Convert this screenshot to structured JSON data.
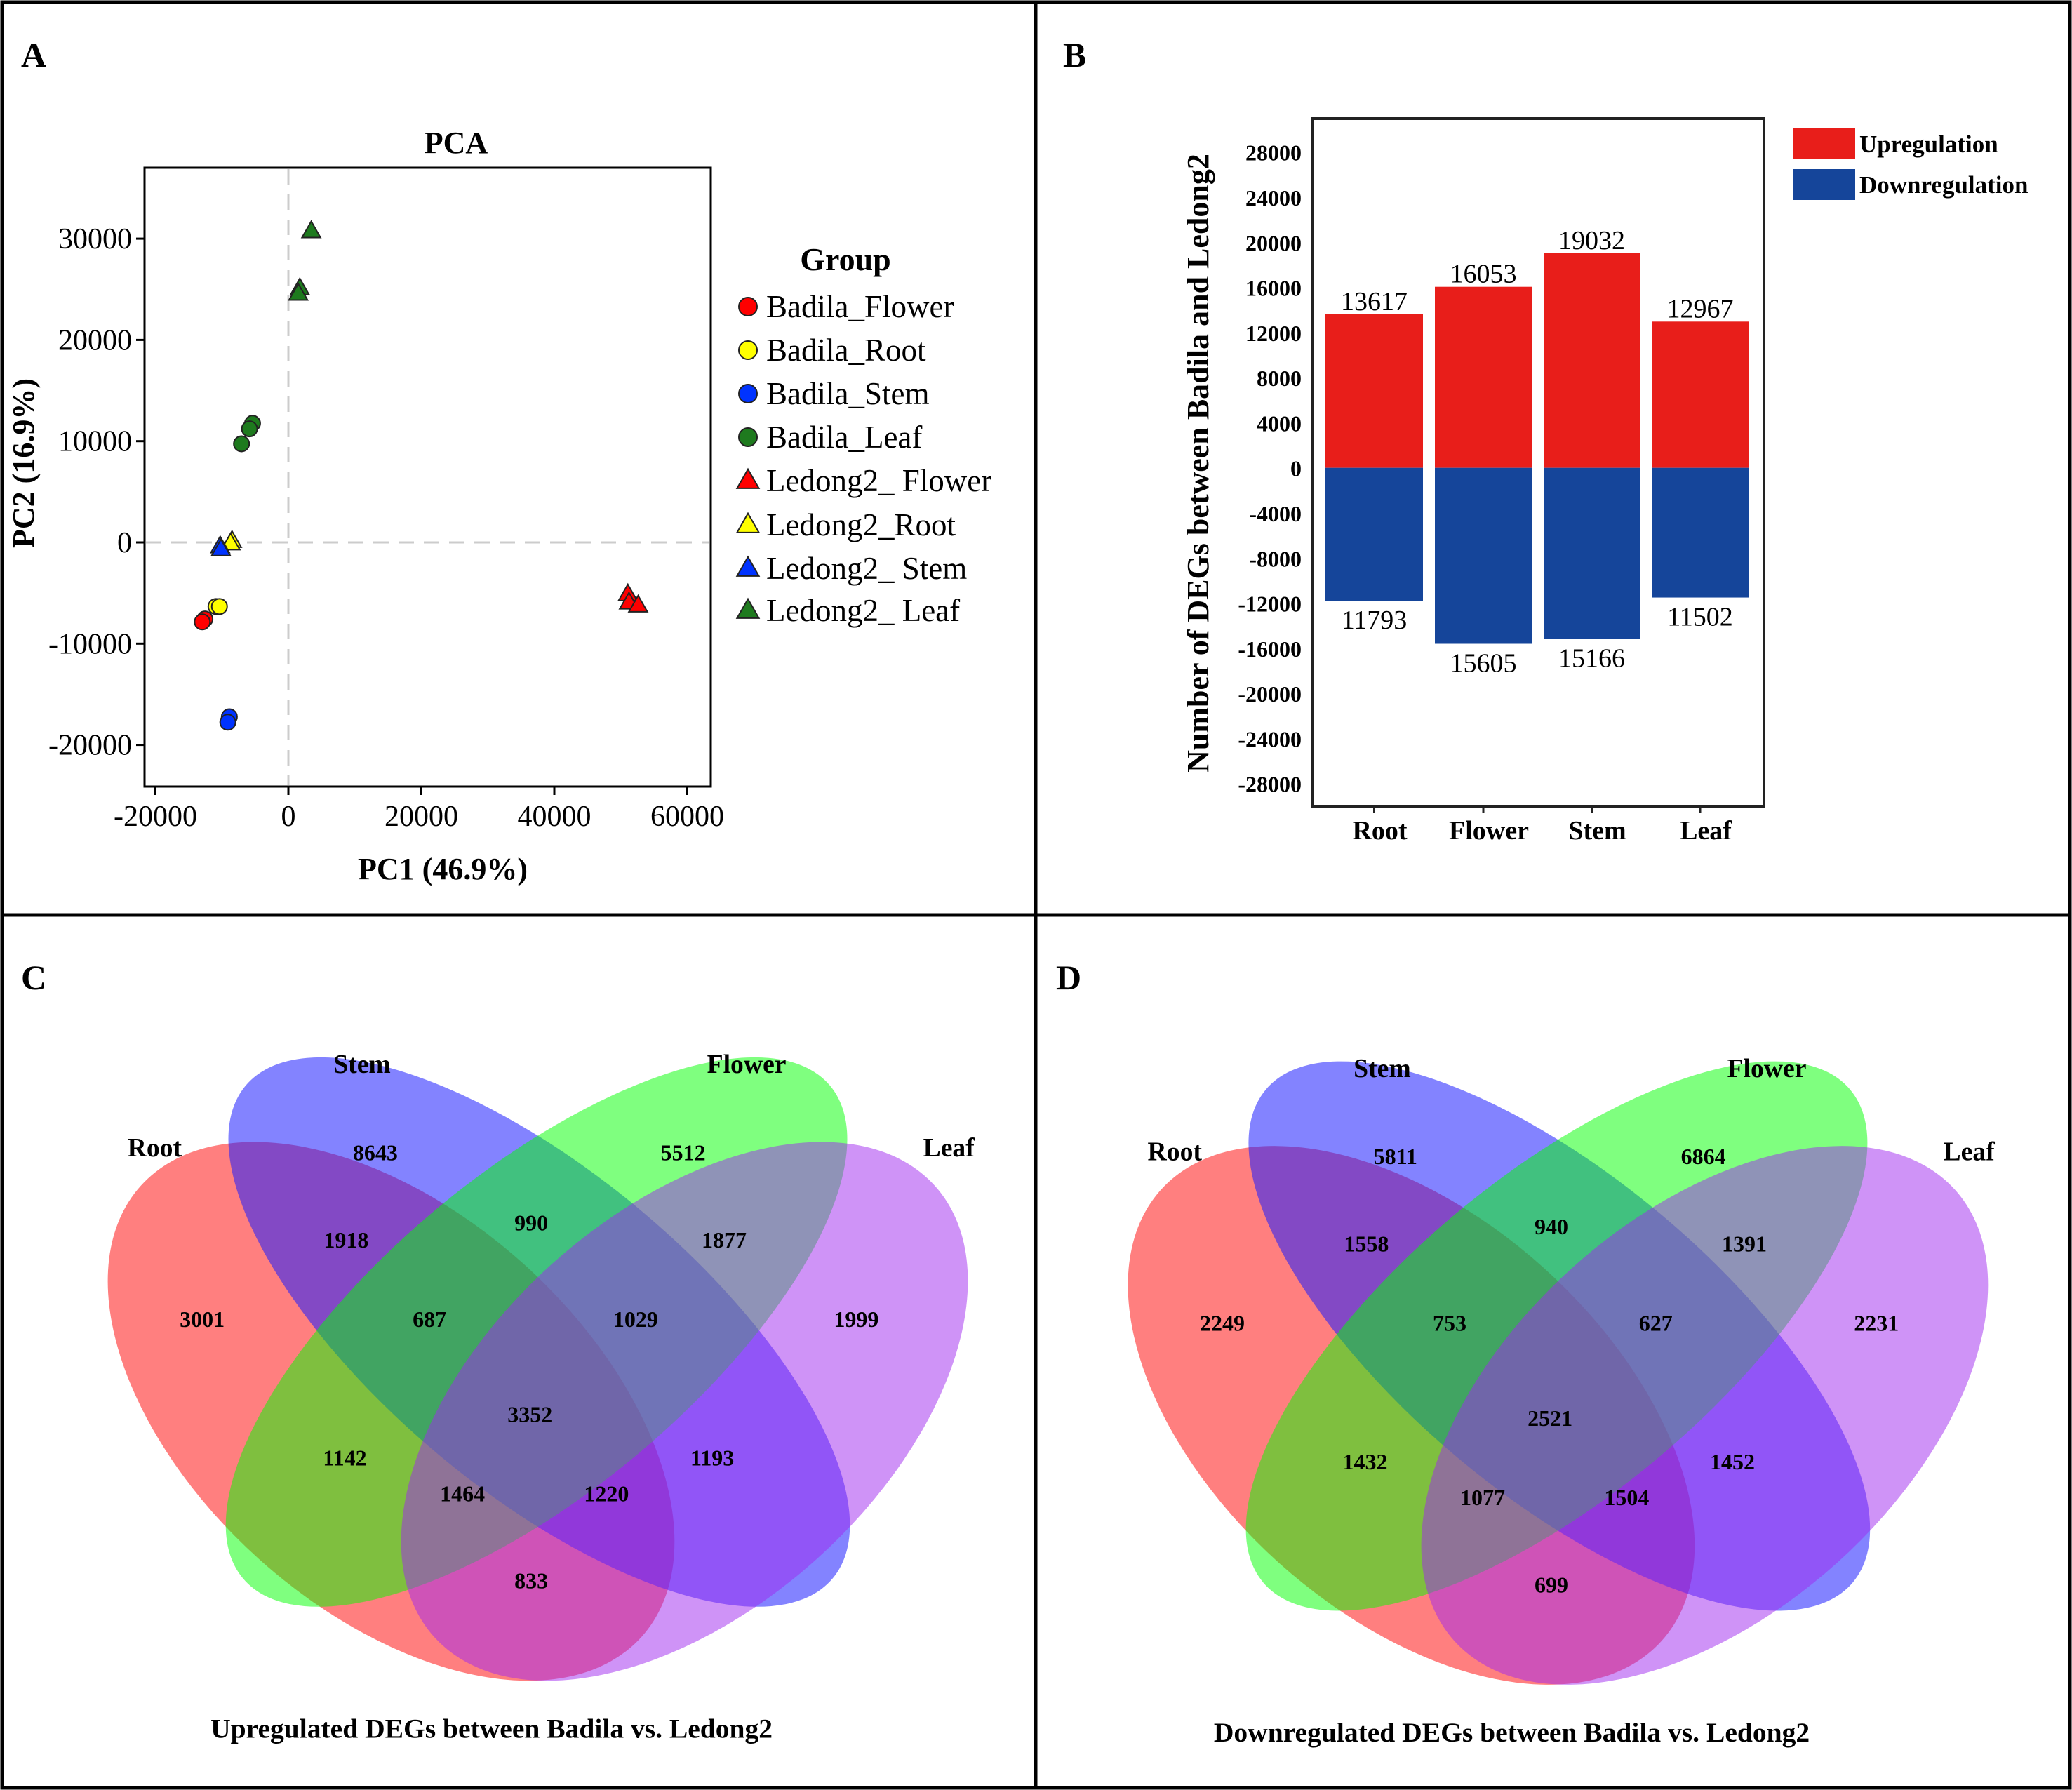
{
  "panels": {
    "a": "A",
    "b": "B",
    "c": "C",
    "d": "D"
  },
  "chart_data": [
    {
      "type": "scatter",
      "title": "PCA",
      "xlabel": "PC1 (46.9%)",
      "ylabel": "PC2 (16.9%)",
      "xlim": [
        -22000,
        62000
      ],
      "ylim": [
        -25000,
        36000
      ],
      "xticks": [
        -20000,
        0,
        20000,
        40000,
        60000
      ],
      "yticks": [
        -20000,
        -10000,
        0,
        10000,
        20000,
        30000
      ],
      "reference_lines": {
        "x": 0,
        "y": 0,
        "style": "dashed"
      },
      "legend": {
        "title": "Group",
        "placement": "right"
      },
      "series": [
        {
          "name": "Badila_Flower",
          "marker": "circle",
          "color": "#ff0000",
          "points": [
            [
              -12550,
              -7560
            ],
            [
              -12950,
              -7850
            ]
          ]
        },
        {
          "name": "Badila_Root",
          "marker": "circle",
          "color": "#ffff00",
          "points": [
            [
              -10890,
              -6330
            ],
            [
              -10370,
              -6330
            ]
          ]
        },
        {
          "name": "Badila_Stem",
          "marker": "circle",
          "color": "#0033ff",
          "points": [
            [
              -8880,
              -17220
            ],
            [
              -9110,
              -17760
            ]
          ]
        },
        {
          "name": "Badila_Leaf",
          "marker": "circle",
          "color": "#1e7a1e",
          "points": [
            [
              -5390,
              11760
            ],
            [
              -5850,
              11220
            ],
            [
              -7050,
              9740
            ]
          ]
        },
        {
          "name": "Ledong2_ Flower",
          "marker": "triangle",
          "color": "#ff0000",
          "points": [
            [
              51060,
              -5100
            ],
            [
              51230,
              -5920
            ],
            [
              52610,
              -6210
            ]
          ]
        },
        {
          "name": "Ledong2_Root",
          "marker": "triangle",
          "color": "#ffff00",
          "points": [
            [
              -8480,
              160
            ],
            [
              -8700,
              -80
            ]
          ]
        },
        {
          "name": "Ledong2_ Stem",
          "marker": "triangle",
          "color": "#0033ff",
          "points": [
            [
              -10260,
              -370
            ],
            [
              -10140,
              -660
            ]
          ]
        },
        {
          "name": "Ledong2_ Leaf",
          "marker": "triangle",
          "color": "#1e7a1e",
          "points": [
            [
              3440,
              30750
            ],
            [
              1720,
              25110
            ],
            [
              1490,
              24580
            ]
          ]
        }
      ]
    },
    {
      "type": "bar",
      "stacked": "diverging",
      "ylabel": "Number of DEGs between Badila and Ledong2",
      "ylim": [
        -30000,
        31000
      ],
      "yticks": [
        28000,
        24000,
        20000,
        16000,
        12000,
        8000,
        4000,
        0,
        -4000,
        -8000,
        -12000,
        -16000,
        -20000,
        -24000,
        -28000
      ],
      "categories": [
        "Root",
        "Flower",
        "Stem",
        "Leaf"
      ],
      "legend": {
        "placement": "top-right"
      },
      "series": [
        {
          "name": "Upregulation",
          "color": "#e81e1a",
          "values": [
            13617,
            16053,
            19032,
            12967
          ]
        },
        {
          "name": "Downregulation",
          "color": "#15459a",
          "values": [
            -11793,
            -15605,
            -15166,
            -11502
          ]
        }
      ],
      "data_labels": {
        "up": [
          "13617",
          "16053",
          "19032",
          "12967"
        ],
        "down": [
          "11793",
          "15605",
          "15166",
          "11502"
        ]
      }
    },
    {
      "type": "venn",
      "caption": "Upregulated DEGs between Badila vs. Ledong2",
      "sets": [
        {
          "name": "Root",
          "color": "#ff2020"
        },
        {
          "name": "Stem",
          "color": "#2020ff"
        },
        {
          "name": "Flower",
          "color": "#20ff20"
        },
        {
          "name": "Leaf",
          "color": "#a040f0"
        }
      ],
      "regions": [
        {
          "sets": "Stem",
          "value": 8643
        },
        {
          "sets": "Flower",
          "value": 5512
        },
        {
          "sets": "Root+Stem",
          "value": 1918
        },
        {
          "sets": "Stem+Flower",
          "value": 990
        },
        {
          "sets": "Flower+Leaf",
          "value": 1877
        },
        {
          "sets": "Root",
          "value": 3001
        },
        {
          "sets": "Root+Stem+Flower",
          "value": 687
        },
        {
          "sets": "Stem+Flower+Leaf",
          "value": 1029
        },
        {
          "sets": "Leaf",
          "value": 1999
        },
        {
          "sets": "Root+Stem+Flower+Leaf",
          "value": 3352
        },
        {
          "sets": "Root+Flower",
          "value": 1142
        },
        {
          "sets": "Stem+Leaf",
          "value": 1193
        },
        {
          "sets": "Root+Flower+Leaf",
          "value": 1464
        },
        {
          "sets": "Root+Stem+Leaf",
          "value": 1220
        },
        {
          "sets": "Root+Leaf",
          "value": 833
        }
      ]
    },
    {
      "type": "venn",
      "caption": "Downregulated DEGs between Badila vs. Ledong2",
      "sets": [
        {
          "name": "Root",
          "color": "#ff2020"
        },
        {
          "name": "Stem",
          "color": "#2020ff"
        },
        {
          "name": "Flower",
          "color": "#20ff20"
        },
        {
          "name": "Leaf",
          "color": "#a040f0"
        }
      ],
      "regions": [
        {
          "sets": "Stem",
          "value": 5811
        },
        {
          "sets": "Flower",
          "value": 6864
        },
        {
          "sets": "Root+Stem",
          "value": 1558
        },
        {
          "sets": "Stem+Flower",
          "value": 940
        },
        {
          "sets": "Flower+Leaf",
          "value": 1391
        },
        {
          "sets": "Root",
          "value": 2249
        },
        {
          "sets": "Root+Stem+Flower",
          "value": 753
        },
        {
          "sets": "Stem+Flower+Leaf",
          "value": 627
        },
        {
          "sets": "Leaf",
          "value": 2231
        },
        {
          "sets": "Root+Stem+Flower+Leaf",
          "value": 2521
        },
        {
          "sets": "Root+Flower",
          "value": 1432
        },
        {
          "sets": "Stem+Leaf",
          "value": 1452
        },
        {
          "sets": "Root+Flower+Leaf",
          "value": 1077
        },
        {
          "sets": "Root+Stem+Leaf",
          "value": 1504
        },
        {
          "sets": "Root+Leaf",
          "value": 699
        }
      ]
    }
  ]
}
